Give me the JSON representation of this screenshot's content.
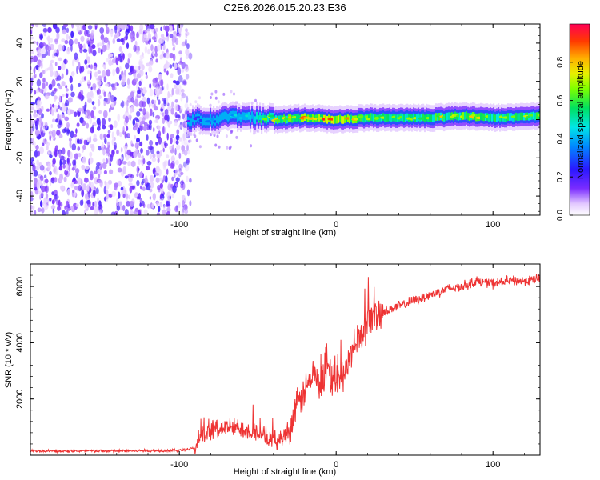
{
  "title": "C2E6.2026.015.20.23.E36",
  "chart_data": [
    {
      "type": "heatmap",
      "title": "C2E6.2026.015.20.23.E36",
      "xlabel": "Height of straight line (km)",
      "ylabel": "Frequency (Hz)",
      "xlim": [
        -195,
        130
      ],
      "ylim": [
        -50,
        50
      ],
      "xticks": [
        -100,
        0,
        100
      ],
      "yticks": [
        -40,
        -20,
        0,
        20,
        40
      ],
      "noise_region_x": [
        -195,
        -95
      ],
      "signal": {
        "description_x": [
          -95,
          -80,
          -60,
          -40,
          -20,
          0,
          20,
          40,
          60,
          80,
          100,
          130
        ],
        "center_freq": [
          0,
          0,
          2,
          0,
          1,
          0,
          1,
          1,
          1,
          2,
          1,
          2
        ],
        "peak_amplitude": [
          0.2,
          0.35,
          0.5,
          0.75,
          0.85,
          0.95,
          0.8,
          0.65,
          0.75,
          0.8,
          0.7,
          0.75
        ]
      },
      "colorbar": {
        "label": "Normalized spectral amplitude",
        "range": [
          0.0,
          1.0
        ],
        "ticks": [
          0.0,
          0.2,
          0.4,
          0.6,
          0.8
        ]
      }
    },
    {
      "type": "line",
      "xlabel": "Height of straight line (km)",
      "ylabel": "SNR (10 * v/v)",
      "xlim": [
        -195,
        130
      ],
      "ylim": [
        0,
        6800
      ],
      "xticks": [
        -100,
        0,
        100
      ],
      "yticks": [
        2000,
        4000,
        6000
      ],
      "color": "#ee3333",
      "series": [
        {
          "name": "SNR",
          "x": [
            -195,
            -180,
            -160,
            -140,
            -120,
            -100,
            -90,
            -85,
            -80,
            -70,
            -60,
            -50,
            -40,
            -35,
            -30,
            -25,
            -20,
            -15,
            -10,
            -5,
            0,
            5,
            10,
            15,
            20,
            25,
            30,
            40,
            50,
            60,
            70,
            80,
            90,
            100,
            110,
            120,
            130
          ],
          "y": [
            150,
            150,
            150,
            150,
            160,
            170,
            250,
            700,
            900,
            1000,
            950,
            800,
            500,
            600,
            900,
            1700,
            2300,
            2800,
            2500,
            2900,
            2500,
            3000,
            3600,
            4200,
            4700,
            5000,
            5100,
            5300,
            5500,
            5700,
            5900,
            6000,
            6200,
            6100,
            6200,
            6200,
            6300
          ]
        }
      ]
    }
  ]
}
